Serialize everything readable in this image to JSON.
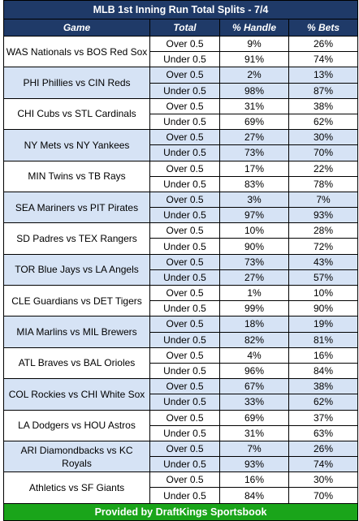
{
  "title": "MLB 1st Inning Run Total Splits - 7/4",
  "headers": {
    "game": "Game",
    "total": "Total",
    "handle": "% Handle",
    "bets": "% Bets"
  },
  "games": [
    {
      "game": "WAS Nationals vs BOS Red Sox",
      "over": {
        "total": "Over 0.5",
        "handle": "9%",
        "bets": "26%"
      },
      "under": {
        "total": "Under 0.5",
        "handle": "91%",
        "bets": "74%"
      }
    },
    {
      "game": "PHI Phillies vs CIN Reds",
      "over": {
        "total": "Over 0.5",
        "handle": "2%",
        "bets": "13%"
      },
      "under": {
        "total": "Under 0.5",
        "handle": "98%",
        "bets": "87%"
      }
    },
    {
      "game": "CHI Cubs vs STL Cardinals",
      "over": {
        "total": "Over 0.5",
        "handle": "31%",
        "bets": "38%"
      },
      "under": {
        "total": "Under 0.5",
        "handle": "69%",
        "bets": "62%"
      }
    },
    {
      "game": "NY Mets vs NY Yankees",
      "over": {
        "total": "Over 0.5",
        "handle": "27%",
        "bets": "30%"
      },
      "under": {
        "total": "Under 0.5",
        "handle": "73%",
        "bets": "70%"
      }
    },
    {
      "game": "MIN Twins vs TB Rays",
      "over": {
        "total": "Over 0.5",
        "handle": "17%",
        "bets": "22%"
      },
      "under": {
        "total": "Under 0.5",
        "handle": "83%",
        "bets": "78%"
      }
    },
    {
      "game": "SEA Mariners vs PIT Pirates",
      "over": {
        "total": "Over 0.5",
        "handle": "3%",
        "bets": "7%"
      },
      "under": {
        "total": "Under 0.5",
        "handle": "97%",
        "bets": "93%"
      }
    },
    {
      "game": "SD Padres vs TEX Rangers",
      "over": {
        "total": "Over 0.5",
        "handle": "10%",
        "bets": "28%"
      },
      "under": {
        "total": "Under 0.5",
        "handle": "90%",
        "bets": "72%"
      }
    },
    {
      "game": "TOR Blue Jays vs LA Angels",
      "over": {
        "total": "Over 0.5",
        "handle": "73%",
        "bets": "43%"
      },
      "under": {
        "total": "Under 0.5",
        "handle": "27%",
        "bets": "57%"
      }
    },
    {
      "game": "CLE Guardians vs DET Tigers",
      "over": {
        "total": "Over 0.5",
        "handle": "1%",
        "bets": "10%"
      },
      "under": {
        "total": "Under 0.5",
        "handle": "99%",
        "bets": "90%"
      }
    },
    {
      "game": "MIA Marlins vs MIL Brewers",
      "over": {
        "total": "Over 0.5",
        "handle": "18%",
        "bets": "19%"
      },
      "under": {
        "total": "Under 0.5",
        "handle": "82%",
        "bets": "81%"
      }
    },
    {
      "game": "ATL Braves vs BAL Orioles",
      "over": {
        "total": "Over 0.5",
        "handle": "4%",
        "bets": "16%"
      },
      "under": {
        "total": "Under 0.5",
        "handle": "96%",
        "bets": "84%"
      }
    },
    {
      "game": "COL Rockies vs CHI White Sox",
      "over": {
        "total": "Over 0.5",
        "handle": "67%",
        "bets": "38%"
      },
      "under": {
        "total": "Under 0.5",
        "handle": "33%",
        "bets": "62%"
      }
    },
    {
      "game": "LA Dodgers vs HOU Astros",
      "over": {
        "total": "Over 0.5",
        "handle": "69%",
        "bets": "37%"
      },
      "under": {
        "total": "Under 0.5",
        "handle": "31%",
        "bets": "63%"
      }
    },
    {
      "game": "ARI Diamondbacks vs KC Royals",
      "over": {
        "total": "Over 0.5",
        "handle": "7%",
        "bets": "26%"
      },
      "under": {
        "total": "Under 0.5",
        "handle": "93%",
        "bets": "74%"
      }
    },
    {
      "game": "Athletics vs SF Giants",
      "over": {
        "total": "Over 0.5",
        "handle": "16%",
        "bets": "30%"
      },
      "under": {
        "total": "Under 0.5",
        "handle": "84%",
        "bets": "70%"
      }
    }
  ],
  "footer": "Provided by DraftKings Sportsbook",
  "colors": {
    "header_bg": "#1f3a68",
    "shaded_row": "#d6e3f5",
    "footer_bg": "#1aa51a"
  }
}
